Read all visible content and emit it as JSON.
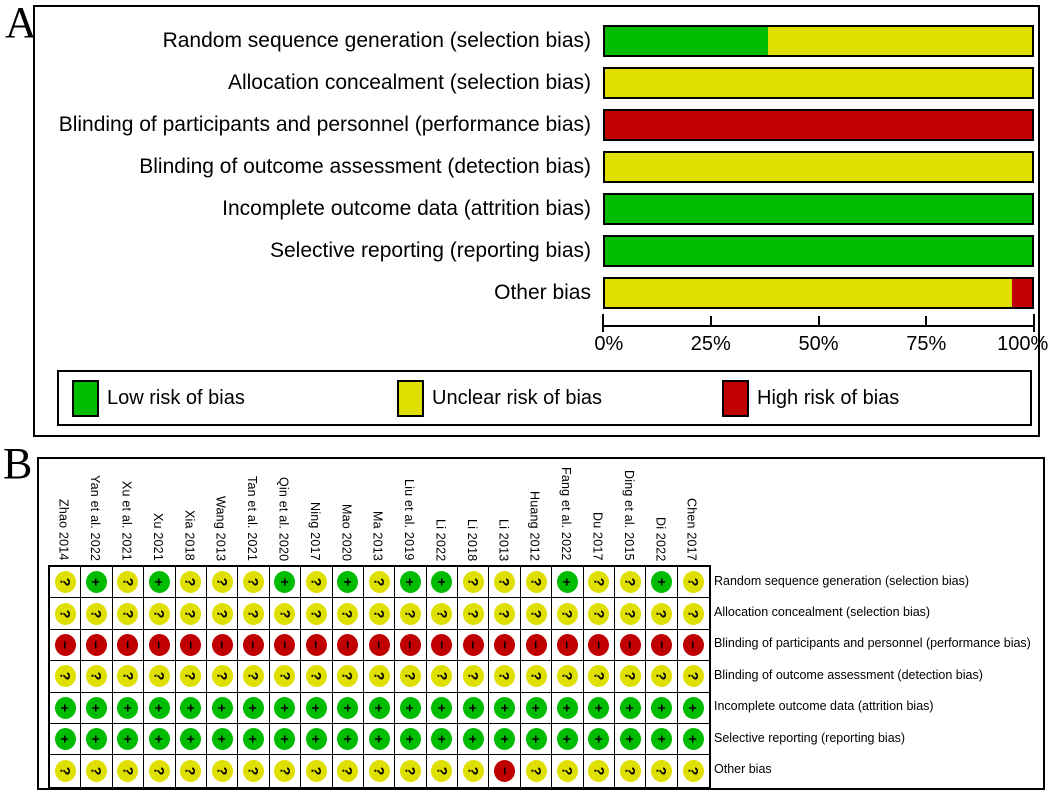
{
  "panel_a": {
    "letter": "A"
  },
  "panel_b": {
    "letter": "B"
  },
  "colors": {
    "low": "#00bc00",
    "unclear": "#dfdf00",
    "high": "#c00000",
    "symbol": "#000000"
  },
  "legend": [
    {
      "key": "low",
      "label": "Low risk of bias"
    },
    {
      "key": "unclear",
      "label": "Unclear risk of bias"
    },
    {
      "key": "high",
      "label": "High risk of bias"
    }
  ],
  "judgement_glyphs": {
    "+": "+",
    "?": "?",
    "-": "−"
  },
  "chart_data": [
    {
      "type": "bar",
      "orientation": "horizontal",
      "stacked": true,
      "panel": "A",
      "title": "Risk of bias graph",
      "categories": [
        "Random sequence generation (selection bias)",
        "Allocation concealment (selection bias)",
        "Blinding of participants and personnel (performance bias)",
        "Blinding of outcome assessment (detection bias)",
        "Incomplete outcome data (attrition bias)",
        "Selective reporting (reporting bias)",
        "Other bias"
      ],
      "series": [
        {
          "name": "Low risk of bias",
          "color_key": "low",
          "values": [
            38.1,
            0,
            0,
            0,
            100,
            100,
            0
          ]
        },
        {
          "name": "Unclear risk of bias",
          "color_key": "unclear",
          "values": [
            61.9,
            100,
            0,
            100,
            0,
            0,
            95.2
          ]
        },
        {
          "name": "High risk of bias",
          "color_key": "high",
          "values": [
            0,
            0,
            100,
            0,
            0,
            0,
            4.8
          ]
        }
      ],
      "xlim": [
        0,
        100
      ],
      "x_ticks": [
        "0%",
        "25%",
        "50%",
        "75%",
        "100%"
      ],
      "grid": false,
      "legend_position": "bottom"
    },
    {
      "type": "heatmap",
      "panel": "B",
      "title": "Risk of bias summary",
      "columns": [
        "Zhao 2014",
        "Yan et al. 2022",
        "Xu et al. 2021",
        "Xu 2021",
        "Xia 2018",
        "Wang 2013",
        "Tan et al. 2021",
        "Qin et al. 2020",
        "Ning 2017",
        "Mao 2020",
        "Ma 2013",
        "Liu et al. 2019",
        "Li 2022",
        "Li 2018",
        "Li 2013",
        "Huang 2012",
        "Fang et al. 2022",
        "Du 2017",
        "Ding et al. 2015",
        "Di 2022",
        "Chen 2017"
      ],
      "rows": [
        "Random sequence generation (selection bias)",
        "Allocation concealment (selection bias)",
        "Blinding of participants and personnel (performance bias)",
        "Blinding of outcome assessment (detection bias)",
        "Incomplete outcome data (attrition bias)",
        "Selective reporting (reporting bias)",
        "Other bias"
      ],
      "cell_values": [
        [
          "?",
          "+",
          "?",
          "+",
          "?",
          "?",
          "?",
          "+",
          "?",
          "+",
          "?",
          "+",
          "+",
          "?",
          "?",
          "?",
          "+",
          "?",
          "?",
          "+",
          "?"
        ],
        [
          "?",
          "?",
          "?",
          "?",
          "?",
          "?",
          "?",
          "?",
          "?",
          "?",
          "?",
          "?",
          "?",
          "?",
          "?",
          "?",
          "?",
          "?",
          "?",
          "?",
          "?"
        ],
        [
          "-",
          "-",
          "-",
          "-",
          "-",
          "-",
          "-",
          "-",
          "-",
          "-",
          "-",
          "-",
          "-",
          "-",
          "-",
          "-",
          "-",
          "-",
          "-",
          "-",
          "-"
        ],
        [
          "?",
          "?",
          "?",
          "?",
          "?",
          "?",
          "?",
          "?",
          "?",
          "?",
          "?",
          "?",
          "?",
          "?",
          "?",
          "?",
          "?",
          "?",
          "?",
          "?",
          "?"
        ],
        [
          "+",
          "+",
          "+",
          "+",
          "+",
          "+",
          "+",
          "+",
          "+",
          "+",
          "+",
          "+",
          "+",
          "+",
          "+",
          "+",
          "+",
          "+",
          "+",
          "+",
          "+"
        ],
        [
          "+",
          "+",
          "+",
          "+",
          "+",
          "+",
          "+",
          "+",
          "+",
          "+",
          "+",
          "+",
          "+",
          "+",
          "+",
          "+",
          "+",
          "+",
          "+",
          "+",
          "+"
        ],
        [
          "?",
          "?",
          "?",
          "?",
          "?",
          "?",
          "?",
          "?",
          "?",
          "?",
          "?",
          "?",
          "?",
          "?",
          "-",
          "?",
          "?",
          "?",
          "?",
          "?",
          "?"
        ]
      ],
      "value_legend": {
        "+": "Low risk of bias",
        "?": "Unclear risk of bias",
        "-": "High risk of bias"
      }
    }
  ]
}
